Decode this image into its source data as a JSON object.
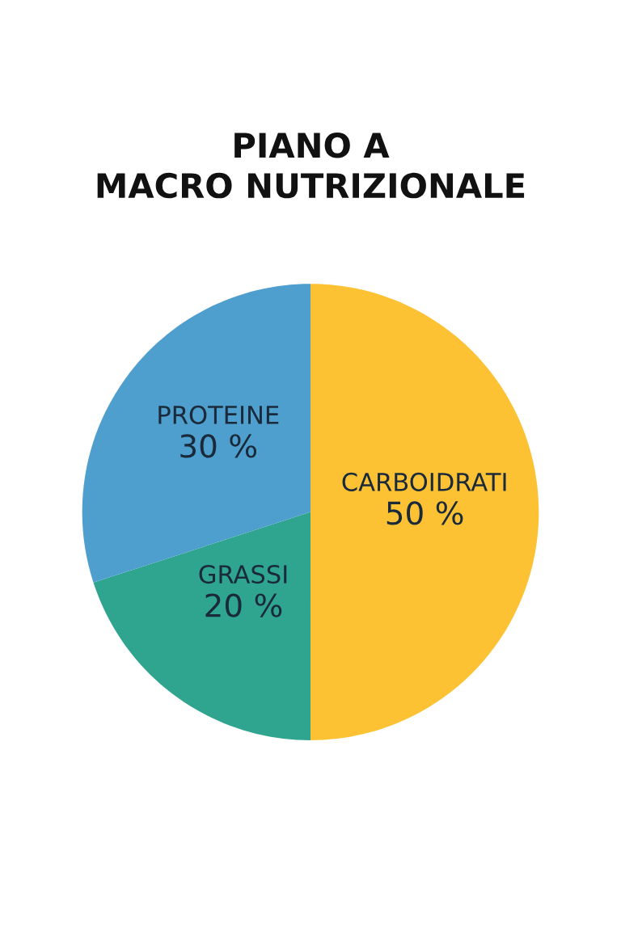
{
  "chart_data": {
    "type": "pie",
    "title": "PIANO A\nMACRO NUTRIZIONALE",
    "categories": [
      "CARBOIDRATI",
      "GRASSI",
      "PROTEINE"
    ],
    "values": [
      50,
      20,
      30
    ],
    "colors": [
      "#fcc233",
      "#2fa58f",
      "#4f9fce"
    ],
    "value_labels": [
      "50 %",
      "20 %",
      "30 %"
    ]
  }
}
